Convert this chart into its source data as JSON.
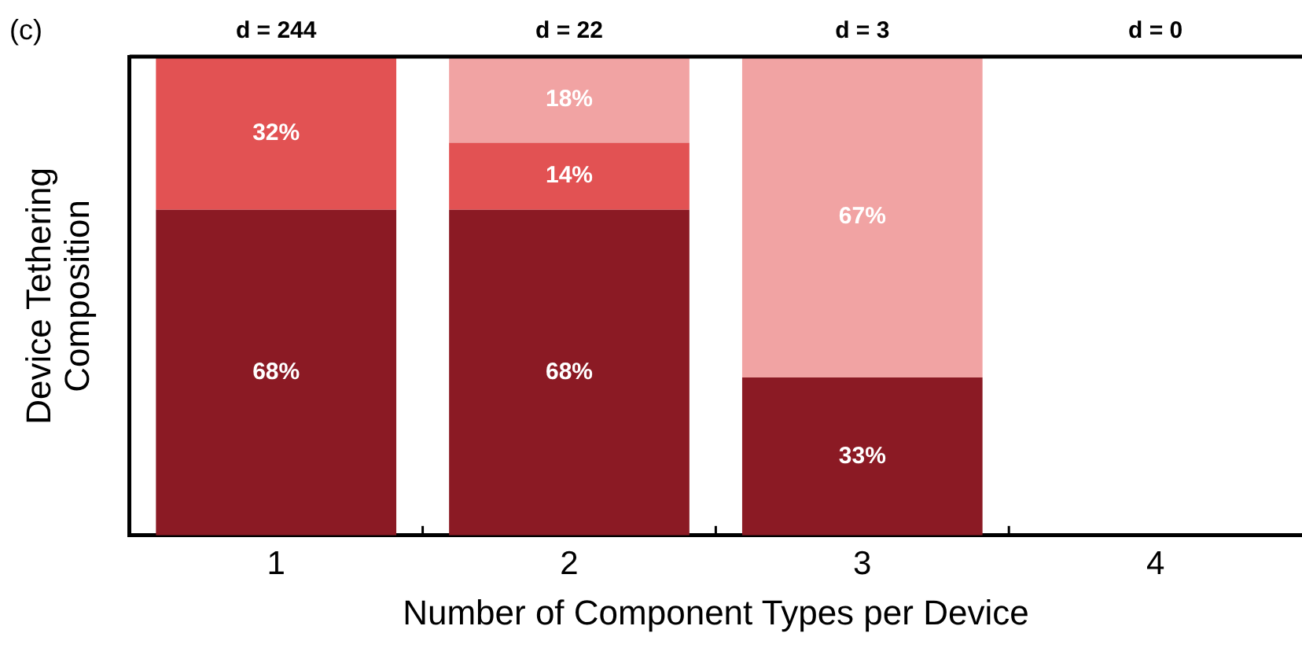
{
  "chart_data": {
    "type": "bar",
    "stacked": true,
    "xlabel": "Number of Component Types per Device",
    "ylabel": "Device Tethering Composition",
    "categories": [
      "1",
      "2",
      "3",
      "4"
    ],
    "ylim": [
      0,
      100
    ],
    "tick_labels": "x",
    "legend": false,
    "grid": false,
    "series": [
      {
        "color": "#8b1a24",
        "values": [
          68,
          68,
          33,
          null
        ],
        "value_labels": [
          "68%",
          "68%",
          "33%",
          null
        ]
      },
      {
        "color": "#e25253",
        "values": [
          32,
          14,
          null,
          null
        ],
        "value_labels": [
          "32%",
          "14%",
          null,
          null
        ]
      },
      {
        "color": "#f1a3a3",
        "values": [
          null,
          18,
          67,
          null
        ],
        "value_labels": [
          null,
          "18%",
          "67%",
          null
        ]
      }
    ],
    "annotations": [
      "(c)",
      "d = 244",
      "d = 22",
      "d = 3",
      "d = 0"
    ]
  }
}
